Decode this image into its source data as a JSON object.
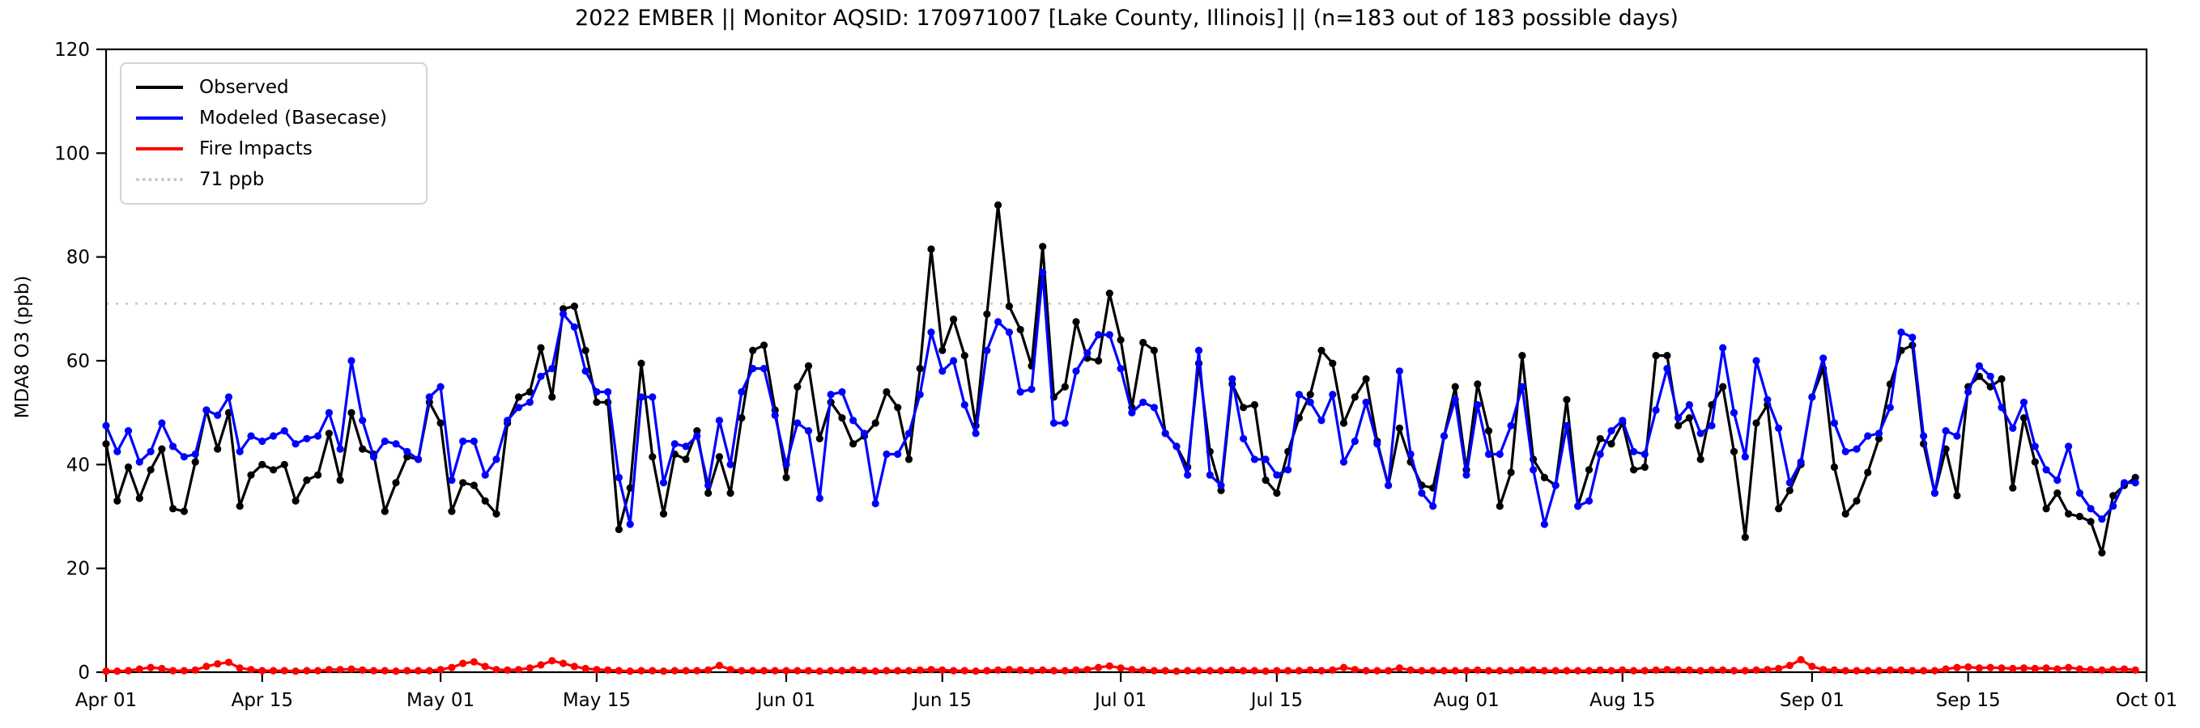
{
  "chart_data": {
    "type": "line",
    "title": "2022 EMBER || Monitor AQSID: 170971007 [Lake County, Illinois] || (n=183 out of 183 possible days)",
    "ylabel": "MDA8 O3 (ppb)",
    "xlabel": "",
    "ylim": [
      0,
      120
    ],
    "yticks": [
      0,
      20,
      40,
      60,
      80,
      100,
      120
    ],
    "x_start_date": "2022-04-01",
    "x_end_date": "2022-10-01",
    "x_total_days": 183,
    "x_cadence": "daily",
    "grid": false,
    "legend_position": "upper-left",
    "xticks": [
      {
        "label": "Apr 01",
        "day": 0
      },
      {
        "label": "Apr 15",
        "day": 14
      },
      {
        "label": "May 01",
        "day": 30
      },
      {
        "label": "May 15",
        "day": 44
      },
      {
        "label": "Jun 01",
        "day": 61
      },
      {
        "label": "Jun 15",
        "day": 75
      },
      {
        "label": "Jul 01",
        "day": 91
      },
      {
        "label": "Jul 15",
        "day": 105
      },
      {
        "label": "Aug 01",
        "day": 122
      },
      {
        "label": "Aug 15",
        "day": 136
      },
      {
        "label": "Sep 01",
        "day": 153
      },
      {
        "label": "Sep 15",
        "day": 167
      },
      {
        "label": "Oct 01",
        "day": 183
      }
    ],
    "threshold": {
      "label": "71 ppb",
      "value": 71,
      "color": "#c8c8c8",
      "style": "dotted"
    },
    "series": [
      {
        "name": "Observed",
        "color": "#000000",
        "marker": "circle",
        "values": [
          44,
          33,
          39.5,
          33.5,
          39,
          43,
          31.5,
          31,
          40.5,
          50.5,
          43,
          50,
          32,
          38,
          40,
          39,
          40,
          33,
          37,
          38,
          46,
          37,
          50,
          43,
          42,
          31,
          36.5,
          41.5,
          41,
          52,
          48,
          31,
          36.5,
          36,
          33,
          30.5,
          48,
          53,
          54,
          62.5,
          53,
          70,
          70.5,
          62,
          52,
          52,
          27.5,
          35.5,
          59.5,
          41.5,
          30.5,
          42,
          41,
          46.5,
          34.5,
          41.5,
          34.5,
          49,
          62,
          63,
          50.5,
          37.5,
          55,
          59,
          45,
          52,
          49,
          44,
          45.5,
          48,
          54,
          51,
          41,
          58.5,
          81.5,
          62,
          68,
          61,
          47.5,
          69,
          90,
          70.5,
          66,
          59,
          82,
          53,
          55,
          67.5,
          60.5,
          60,
          73,
          64,
          51,
          63.5,
          62,
          46,
          43.5,
          39.5,
          59.5,
          42.5,
          35,
          55.5,
          51,
          51.5,
          37,
          34.5,
          42.5,
          49,
          53.5,
          62,
          59.5,
          48,
          53,
          56.5,
          44.5,
          36,
          47,
          40.5,
          36,
          35.5,
          45.5,
          55,
          39,
          55.5,
          46.5,
          32,
          38.5,
          61,
          41,
          37.5,
          36,
          52.5,
          32,
          39,
          45,
          44,
          48,
          39,
          39.5,
          61,
          61,
          47.5,
          49,
          41,
          51.5,
          55,
          42.5,
          26,
          48,
          51.5,
          31.5,
          35,
          40,
          53,
          58.5,
          39.5,
          30.5,
          33,
          38.5,
          45,
          55.5,
          62,
          63,
          44,
          34.5,
          43,
          34,
          55,
          57,
          55,
          56.5,
          35.5,
          49,
          40.5,
          31.5,
          34.5,
          30.5,
          30,
          29,
          23,
          34,
          36,
          37.5
        ]
      },
      {
        "name": "Modeled (Basecase)",
        "color": "#0000ff",
        "marker": "circle",
        "values": [
          47.5,
          42.5,
          46.5,
          40.5,
          42.5,
          48,
          43.5,
          41.5,
          42,
          50.5,
          49.5,
          53,
          42.5,
          45.5,
          44.5,
          45.5,
          46.5,
          44,
          45,
          45.5,
          50,
          43,
          60,
          48.5,
          41.5,
          44.5,
          44,
          42.5,
          41,
          53,
          55,
          37,
          44.5,
          44.5,
          38,
          41,
          48.5,
          51,
          52,
          57,
          58.5,
          69,
          66.5,
          58,
          54,
          54,
          37.5,
          28.5,
          53,
          53,
          36.5,
          44,
          43.5,
          45.5,
          36,
          48.5,
          40,
          54,
          58.5,
          58.5,
          49.5,
          40,
          48,
          46.5,
          33.5,
          53.5,
          54,
          48.5,
          46,
          32.5,
          42,
          42,
          46,
          53.5,
          65.5,
          58,
          60,
          51.5,
          46,
          62,
          67.5,
          65.5,
          54,
          54.5,
          77,
          48,
          48,
          58,
          61.5,
          65,
          65,
          58.5,
          50,
          52,
          51,
          46,
          43.5,
          38,
          62,
          38,
          36,
          56.5,
          45,
          41,
          41,
          38,
          39,
          53.5,
          52,
          48.5,
          53.5,
          40.5,
          44.5,
          52,
          44,
          36,
          58,
          42,
          34.5,
          32,
          45.5,
          52.5,
          38,
          51.5,
          42,
          42,
          47.5,
          55,
          39,
          28.5,
          36,
          47.5,
          32,
          33,
          42,
          46.5,
          48.5,
          42.5,
          42,
          50.5,
          58.5,
          49,
          51.5,
          46,
          47.5,
          62.5,
          50,
          41.5,
          60,
          52.5,
          47,
          36.5,
          40.5,
          53,
          60.5,
          48,
          42.5,
          43,
          45.5,
          46,
          51,
          65.5,
          64.5,
          45.5,
          34.5,
          46.5,
          45.5,
          54,
          59,
          57,
          51,
          47,
          52,
          43.5,
          39,
          37,
          43.5,
          34.5,
          31.5,
          29.5,
          32,
          36.5,
          36.5
        ]
      },
      {
        "name": "Fire Impacts",
        "color": "#ff0000",
        "marker": "circle",
        "values": [
          0.2,
          0.2,
          0.3,
          0.6,
          0.9,
          0.7,
          0.3,
          0.3,
          0.4,
          1.1,
          1.6,
          1.9,
          0.8,
          0.5,
          0.3,
          0.3,
          0.3,
          0.2,
          0.3,
          0.3,
          0.5,
          0.5,
          0.6,
          0.4,
          0.3,
          0.3,
          0.2,
          0.3,
          0.3,
          0.3,
          0.5,
          0.9,
          1.7,
          2.0,
          1.1,
          0.5,
          0.4,
          0.5,
          0.8,
          1.4,
          2.2,
          1.7,
          1.1,
          0.7,
          0.5,
          0.4,
          0.3,
          0.2,
          0.3,
          0.3,
          0.2,
          0.3,
          0.3,
          0.3,
          0.4,
          1.3,
          0.5,
          0.3,
          0.3,
          0.3,
          0.3,
          0.3,
          0.3,
          0.3,
          0.2,
          0.3,
          0.3,
          0.4,
          0.3,
          0.2,
          0.3,
          0.3,
          0.3,
          0.4,
          0.5,
          0.4,
          0.3,
          0.3,
          0.2,
          0.3,
          0.4,
          0.5,
          0.4,
          0.3,
          0.4,
          0.3,
          0.3,
          0.4,
          0.5,
          0.9,
          1.2,
          0.8,
          0.5,
          0.4,
          0.3,
          0.3,
          0.2,
          0.3,
          0.3,
          0.3,
          0.3,
          0.4,
          0.3,
          0.3,
          0.2,
          0.3,
          0.3,
          0.3,
          0.4,
          0.3,
          0.4,
          0.9,
          0.5,
          0.3,
          0.3,
          0.3,
          0.8,
          0.4,
          0.3,
          0.3,
          0.3,
          0.3,
          0.3,
          0.4,
          0.3,
          0.3,
          0.3,
          0.4,
          0.4,
          0.3,
          0.3,
          0.3,
          0.3,
          0.3,
          0.4,
          0.3,
          0.4,
          0.3,
          0.3,
          0.4,
          0.5,
          0.4,
          0.4,
          0.3,
          0.4,
          0.4,
          0.3,
          0.3,
          0.4,
          0.5,
          0.7,
          1.3,
          2.4,
          1.1,
          0.5,
          0.4,
          0.3,
          0.3,
          0.3,
          0.3,
          0.4,
          0.4,
          0.3,
          0.3,
          0.3,
          0.6,
          0.9,
          1.0,
          0.8,
          0.9,
          0.8,
          0.7,
          0.8,
          0.7,
          0.8,
          0.6,
          0.9,
          0.6,
          0.5,
          0.4,
          0.5,
          0.6,
          0.4
        ]
      }
    ]
  }
}
